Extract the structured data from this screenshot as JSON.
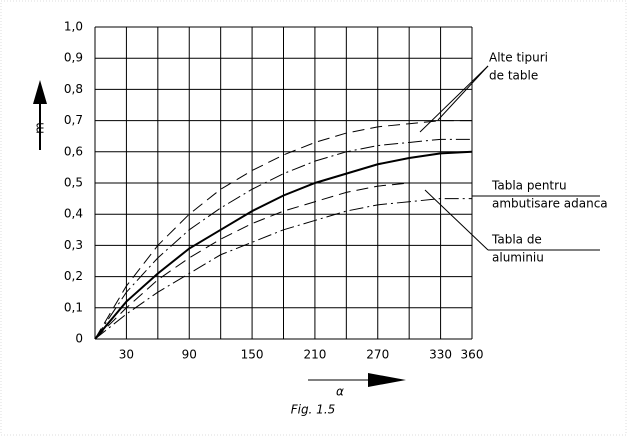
{
  "chart_data": {
    "type": "line",
    "x": [
      0,
      30,
      60,
      90,
      120,
      150,
      180,
      210,
      240,
      270,
      300,
      330,
      360
    ],
    "series": [
      {
        "color": "#000000",
        "style": "dashed",
        "values": [
          0,
          0.17,
          0.3,
          0.4,
          0.48,
          0.54,
          0.59,
          0.63,
          0.66,
          0.68,
          0.69,
          0.7,
          0.7
        ]
      },
      {
        "color": "#000000",
        "style": "dashdot",
        "values": [
          0,
          0.15,
          0.26,
          0.35,
          0.42,
          0.48,
          0.53,
          0.57,
          0.6,
          0.62,
          0.63,
          0.64,
          0.64
        ]
      },
      {
        "color": "#000000",
        "style": "solid",
        "values": [
          0,
          0.12,
          0.21,
          0.29,
          0.35,
          0.41,
          0.46,
          0.5,
          0.53,
          0.56,
          0.58,
          0.595,
          0.6
        ]
      },
      {
        "color": "#000000",
        "style": "dashed",
        "values": [
          0,
          0.1,
          0.19,
          0.26,
          0.32,
          0.37,
          0.41,
          0.44,
          0.47,
          0.49,
          0.5,
          0.5,
          0.5
        ]
      },
      {
        "color": "#000000",
        "style": "dashdot",
        "values": [
          0,
          0.08,
          0.15,
          0.21,
          0.27,
          0.31,
          0.35,
          0.38,
          0.41,
          0.43,
          0.44,
          0.45,
          0.45
        ]
      }
    ],
    "xlim": [
      0,
      360
    ],
    "xticks": [
      30,
      90,
      150,
      210,
      270,
      330,
      360
    ],
    "xgrid": [
      0,
      30,
      60,
      90,
      120,
      150,
      180,
      210,
      240,
      270,
      300,
      330,
      360
    ],
    "ylim": [
      0,
      1
    ],
    "yticks": [
      0,
      {
        "value": 0.1,
        "label": "0,1"
      },
      {
        "value": 0.2,
        "label": "0,2"
      },
      {
        "value": 0.3,
        "label": "0,3"
      },
      {
        "value": 0.4,
        "label": "0,4"
      },
      {
        "value": 0.5,
        "label": "0,5"
      },
      {
        "value": 0.6,
        "label": "0,6"
      },
      {
        "value": 0.7,
        "label": "0,7"
      },
      {
        "value": 0.8,
        "label": "0,8"
      },
      {
        "value": 0.9,
        "label": "0,9"
      },
      {
        "value": 1,
        "label": "1,0"
      }
    ],
    "grid": true,
    "y_label": "m",
    "x_label": "α",
    "caption": "Fig. 1.5",
    "annotations": [
      {
        "lines": [
          "Alte tipuri",
          "de table"
        ]
      },
      {
        "lines": [
          "Tabla pentru",
          "ambutisare adanca"
        ]
      },
      {
        "lines": [
          "Tabla de",
          "aluminiu"
        ]
      }
    ]
  }
}
